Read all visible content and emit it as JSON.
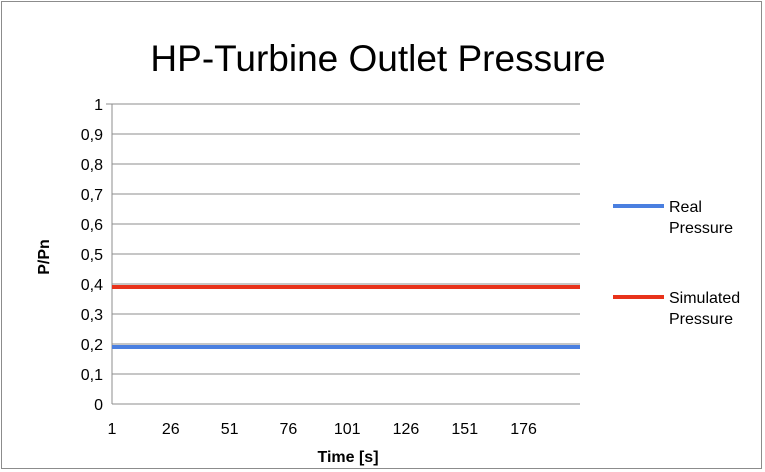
{
  "chart_data": {
    "type": "line",
    "title": "HP-Turbine Outlet Pressure",
    "xlabel": "Time [s]",
    "ylabel": "P/Pn",
    "categories": [
      "1",
      "26",
      "51",
      "76",
      "101",
      "126",
      "151",
      "176"
    ],
    "x_range": [
      1,
      200
    ],
    "ylim": [
      0,
      1
    ],
    "y_ticks": [
      "0",
      "0,1",
      "0,2",
      "0,3",
      "0,4",
      "0,5",
      "0,6",
      "0,7",
      "0,8",
      "0,9",
      "1"
    ],
    "y_tick_values": [
      0,
      0.1,
      0.2,
      0.3,
      0.4,
      0.5,
      0.6,
      0.7,
      0.8,
      0.9,
      1
    ],
    "grid": true,
    "legend_position": "right",
    "series": [
      {
        "name_lines": [
          "Real",
          "Pressure"
        ],
        "color": "#4a7fe0",
        "x": [
          1,
          200
        ],
        "values": [
          0.19,
          0.19
        ]
      },
      {
        "name_lines": [
          "Simulated",
          "Pressure"
        ],
        "color": "#e8321a",
        "x": [
          1,
          200
        ],
        "values": [
          0.39,
          0.39
        ]
      }
    ]
  }
}
